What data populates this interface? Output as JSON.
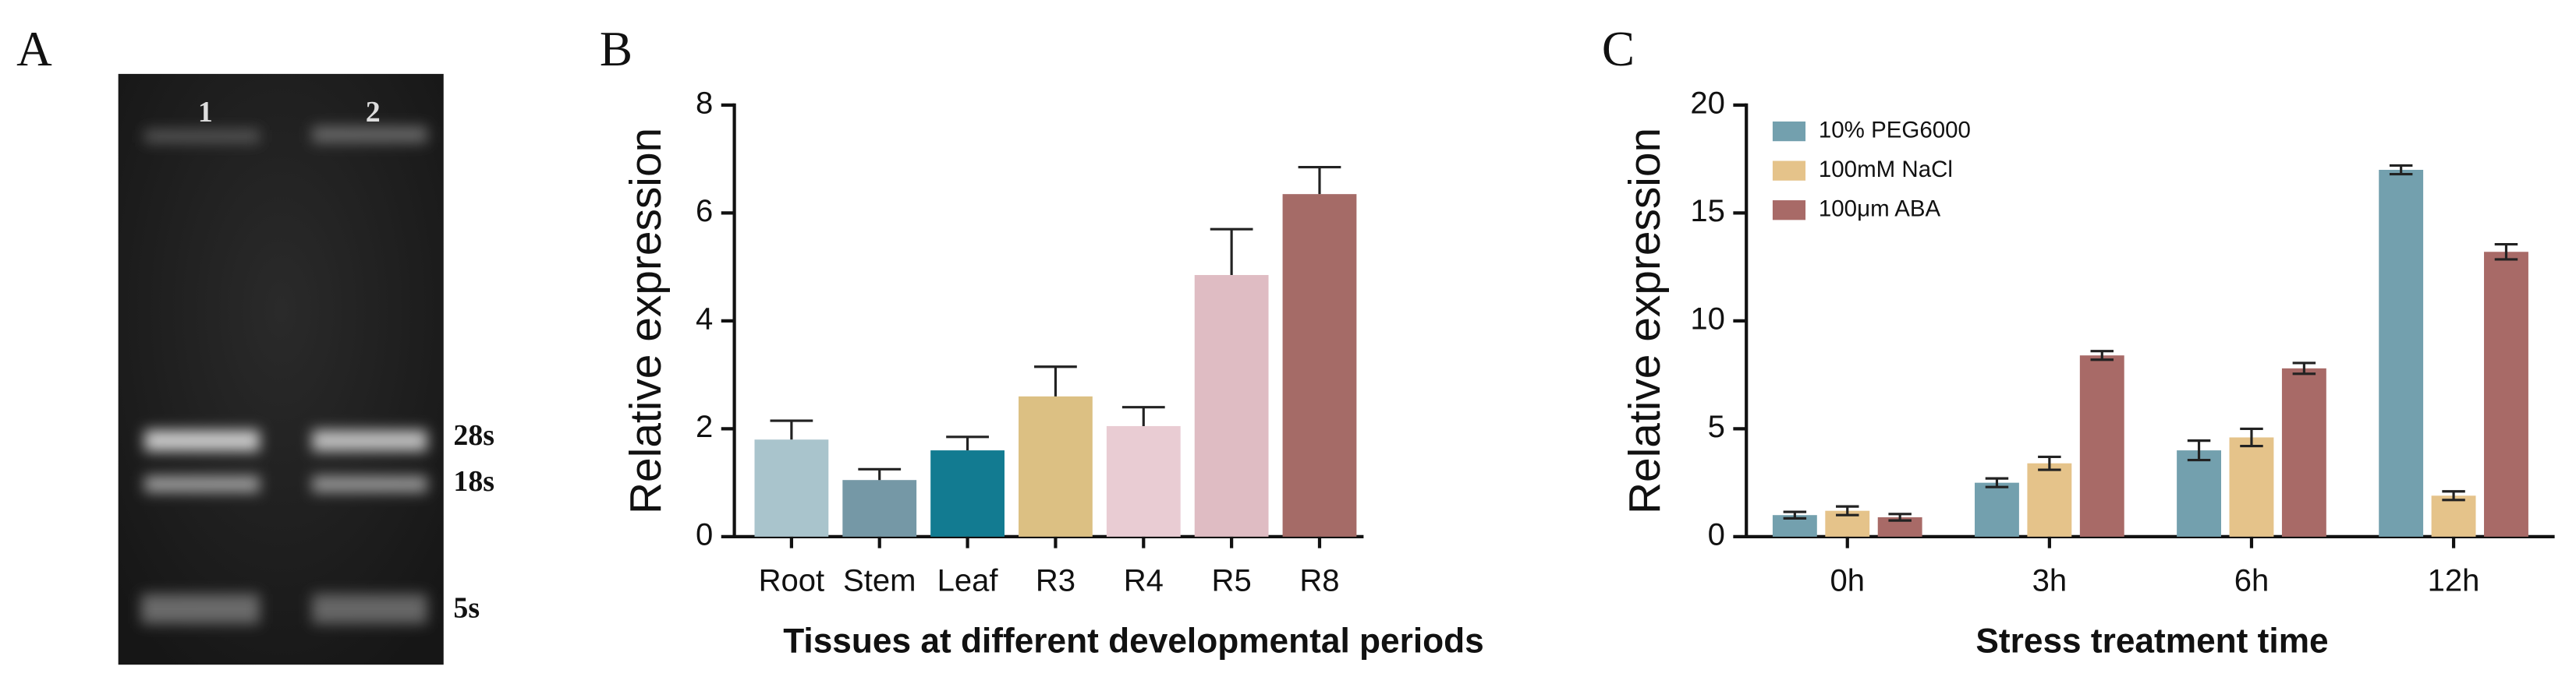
{
  "gel": {
    "panel": "A",
    "lanes": [
      "1",
      "2"
    ],
    "markers": [
      "28s",
      "18s",
      "5s"
    ]
  },
  "chart_data": [
    {
      "type": "bar",
      "panel": "B",
      "categories": [
        "Root",
        "Stem",
        "Leaf",
        "R3",
        "R4",
        "R5",
        "R8"
      ],
      "values": [
        1.8,
        1.05,
        1.6,
        2.6,
        2.05,
        4.85,
        6.35
      ],
      "errors": [
        0.35,
        0.2,
        0.25,
        0.55,
        0.35,
        0.85,
        0.5
      ],
      "error_style": "up",
      "colors": [
        "#a9c4cc",
        "#7598a6",
        "#127b91",
        "#dcc083",
        "#e9ccd3",
        "#dfbcc3",
        "#a56b67"
      ],
      "xlabel": "Tissues at different developmental periods",
      "ylabel": "Relative expression",
      "ylim": [
        0,
        8
      ],
      "yticks": [
        0,
        2,
        4,
        6,
        8
      ]
    },
    {
      "type": "grouped_bar",
      "panel": "C",
      "categories": [
        "0h",
        "3h",
        "6h",
        "12h"
      ],
      "series": [
        {
          "name": "10% PEG6000",
          "color": "#73a0ae",
          "values": [
            1.0,
            2.5,
            4.0,
            17.0
          ],
          "errors": [
            0.15,
            0.2,
            0.45,
            0.2
          ]
        },
        {
          "name": "100mM NaCl",
          "color": "#e5c38a",
          "values": [
            1.2,
            3.4,
            4.6,
            1.9
          ],
          "errors": [
            0.2,
            0.3,
            0.4,
            0.2
          ]
        },
        {
          "name": "100μm ABA",
          "color": "#a86a67",
          "values": [
            0.9,
            8.4,
            7.8,
            13.2
          ],
          "errors": [
            0.15,
            0.2,
            0.25,
            0.35
          ]
        }
      ],
      "error_style": "both",
      "legend": "upper left",
      "xlabel": "Stress treatment time",
      "ylabel": "Relative expression",
      "ylim": [
        0,
        20
      ],
      "yticks": [
        0,
        5,
        10,
        15,
        20
      ]
    }
  ]
}
